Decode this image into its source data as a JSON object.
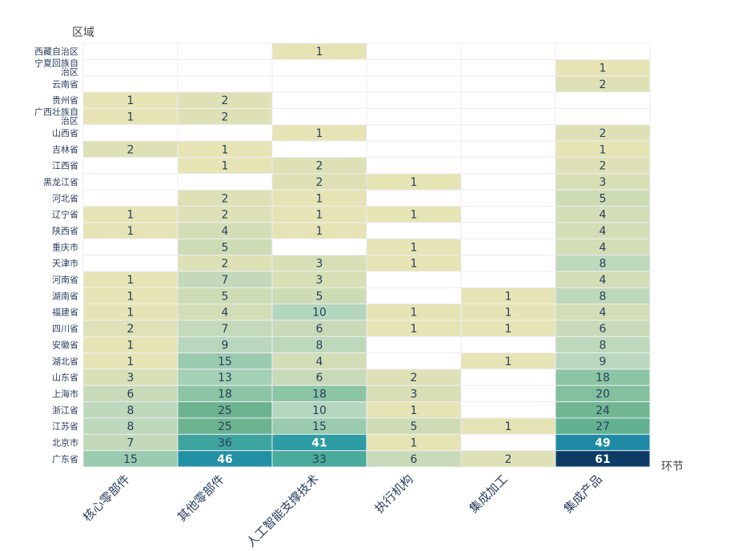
{
  "chart_data": {
    "type": "heatmap",
    "ylabel": "区域",
    "xlabel": "环节",
    "x": [
      "核心零部件",
      "其他零部件",
      "人工智能支撑技术",
      "执行机构",
      "集成加工",
      "集成产品"
    ],
    "y": [
      "西藏自治区",
      "宁夏回族自治区",
      "云南省",
      "贵州省",
      "广西壮族自治区",
      "山西省",
      "吉林省",
      "江西省",
      "黑龙江省",
      "河北省",
      "辽宁省",
      "陕西省",
      "重庆市",
      "天津市",
      "河南省",
      "湖南省",
      "福建省",
      "四川省",
      "安徽省",
      "湖北省",
      "山东省",
      "上海市",
      "浙江省",
      "江苏省",
      "北京市",
      "广东省"
    ],
    "values": [
      [
        null,
        null,
        1,
        null,
        null,
        null
      ],
      [
        null,
        null,
        null,
        null,
        null,
        1
      ],
      [
        null,
        null,
        null,
        null,
        null,
        2
      ],
      [
        1,
        2,
        null,
        null,
        null,
        null
      ],
      [
        1,
        2,
        null,
        null,
        null,
        null
      ],
      [
        null,
        null,
        1,
        null,
        null,
        2
      ],
      [
        2,
        1,
        null,
        null,
        null,
        1
      ],
      [
        null,
        1,
        2,
        null,
        null,
        2
      ],
      [
        null,
        null,
        2,
        1,
        null,
        3
      ],
      [
        null,
        2,
        1,
        null,
        null,
        5
      ],
      [
        1,
        2,
        1,
        1,
        null,
        4
      ],
      [
        1,
        4,
        1,
        null,
        null,
        4
      ],
      [
        null,
        5,
        null,
        1,
        null,
        4
      ],
      [
        null,
        2,
        3,
        1,
        null,
        8
      ],
      [
        1,
        7,
        3,
        null,
        null,
        4
      ],
      [
        1,
        5,
        5,
        null,
        1,
        8
      ],
      [
        1,
        4,
        10,
        1,
        1,
        4
      ],
      [
        2,
        7,
        6,
        1,
        1,
        6
      ],
      [
        1,
        9,
        8,
        null,
        null,
        8
      ],
      [
        1,
        15,
        4,
        null,
        1,
        9
      ],
      [
        3,
        13,
        6,
        2,
        null,
        18
      ],
      [
        6,
        18,
        18,
        3,
        null,
        20
      ],
      [
        8,
        25,
        10,
        1,
        null,
        24
      ],
      [
        8,
        25,
        15,
        5,
        1,
        27
      ],
      [
        7,
        36,
        41,
        1,
        null,
        49
      ],
      [
        15,
        46,
        33,
        6,
        2,
        61
      ]
    ],
    "zrange": [
      1,
      61
    ],
    "colorscale": "YlGnBu-like",
    "colors": [
      "#e6e4b4",
      "#cfdcb6",
      "#b2d5be",
      "#8fc7a7",
      "#6cb48f",
      "#48ab9b",
      "#2a9aa5",
      "#1a85a5",
      "#0d3b66"
    ],
    "grid": true,
    "legend": "none"
  }
}
